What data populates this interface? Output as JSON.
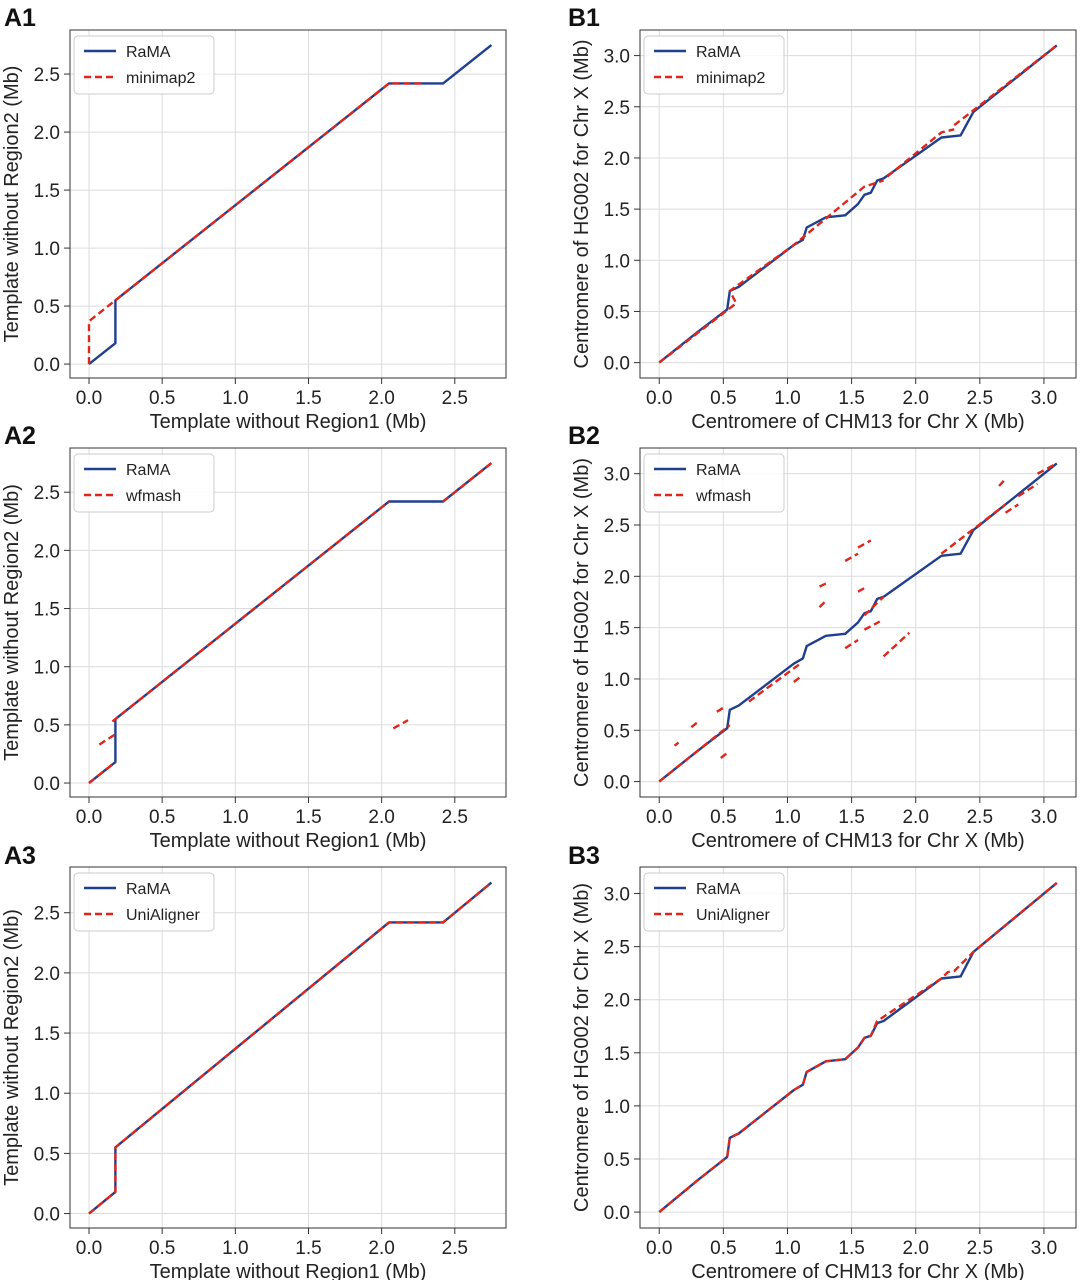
{
  "colors": {
    "rama": "#1f3f8f",
    "other": "#e0261b",
    "grid": "#dcdcdc",
    "axes": "#333333"
  },
  "panels": [
    {
      "letter": "A1",
      "xlabel": "Template without Region1 (Mb)",
      "ylabel": "Template without Region2 (Mb)",
      "legend": [
        "RaMA",
        "minimap2"
      ]
    },
    {
      "letter": "B1",
      "xlabel": "Centromere of CHM13 for Chr X (Mb)",
      "ylabel": "Centromere of HG002 for Chr X (Mb)",
      "legend": [
        "RaMA",
        "minimap2"
      ]
    },
    {
      "letter": "A2",
      "xlabel": "Template without Region1 (Mb)",
      "ylabel": "Template without Region2 (Mb)",
      "legend": [
        "RaMA",
        "wfmash"
      ]
    },
    {
      "letter": "B2",
      "xlabel": "Centromere of CHM13 for Chr X (Mb)",
      "ylabel": "Centromere of HG002 for Chr X (Mb)",
      "legend": [
        "RaMA",
        "wfmash"
      ]
    },
    {
      "letter": "A3",
      "xlabel": "Template without Region1 (Mb)",
      "ylabel": "Template without Region2 (Mb)",
      "legend": [
        "RaMA",
        "UniAligner"
      ]
    },
    {
      "letter": "B3",
      "xlabel": "Centromere of CHM13 for Chr X (Mb)",
      "ylabel": "Centromere of HG002 for Chr X (Mb)",
      "legend": [
        "RaMA",
        "UniAligner"
      ]
    }
  ],
  "chart_data": [
    {
      "type": "line",
      "panel": "A1",
      "xlabel": "Template without Region1 (Mb)",
      "ylabel": "Template without Region2 (Mb)",
      "xlim": [
        -0.13,
        2.85
      ],
      "ylim": [
        -0.12,
        2.88
      ],
      "grid": true,
      "legend_position": "top-left",
      "xticks": [
        "0.0",
        "0.5",
        "1.0",
        "1.5",
        "2.0",
        "2.5"
      ],
      "yticks": [
        "0.0",
        "0.5",
        "1.0",
        "1.5",
        "2.0",
        "2.5"
      ],
      "series": [
        {
          "name": "RaMA",
          "style": "solid",
          "segments": [
            [
              [
                0,
                0
              ],
              [
                0.18,
                0.18
              ],
              [
                0.18,
                0.55
              ],
              [
                2.05,
                2.42
              ],
              [
                2.42,
                2.42
              ],
              [
                2.75,
                2.75
              ]
            ]
          ]
        },
        {
          "name": "minimap2",
          "style": "dashed",
          "segments": [
            [
              [
                0,
                0
              ],
              [
                0,
                0.37
              ],
              [
                0.18,
                0.55
              ],
              [
                2.05,
                2.42
              ],
              [
                2.3,
                2.42
              ]
            ]
          ]
        }
      ]
    },
    {
      "type": "line",
      "panel": "B1",
      "xlabel": "Centromere of CHM13 for Chr X (Mb)",
      "ylabel": "Centromere of HG002 for Chr X (Mb)",
      "xlim": [
        -0.15,
        3.25
      ],
      "ylim": [
        -0.15,
        3.25
      ],
      "grid": true,
      "legend_position": "top-left",
      "xticks": [
        "0.0",
        "0.5",
        "1.0",
        "1.5",
        "2.0",
        "2.5",
        "3.0"
      ],
      "yticks": [
        "0.0",
        "0.5",
        "1.0",
        "1.5",
        "2.0",
        "2.5",
        "3.0"
      ],
      "series": [
        {
          "name": "RaMA",
          "style": "solid",
          "segments": [
            [
              [
                0,
                0
              ],
              [
                0.3,
                0.3
              ],
              [
                0.53,
                0.52
              ],
              [
                0.55,
                0.7
              ],
              [
                0.62,
                0.74
              ],
              [
                1.05,
                1.15
              ],
              [
                1.12,
                1.2
              ],
              [
                1.15,
                1.32
              ],
              [
                1.3,
                1.42
              ],
              [
                1.45,
                1.44
              ],
              [
                1.55,
                1.55
              ],
              [
                1.6,
                1.64
              ],
              [
                1.65,
                1.66
              ],
              [
                1.7,
                1.78
              ],
              [
                1.75,
                1.8
              ],
              [
                2.2,
                2.2
              ],
              [
                2.35,
                2.22
              ],
              [
                2.45,
                2.45
              ],
              [
                3.1,
                3.1
              ]
            ]
          ]
        },
        {
          "name": "minimap2",
          "style": "dashed",
          "segments": [
            [
              [
                0,
                0
              ],
              [
                0.6,
                0.58
              ],
              [
                0.55,
                0.7
              ],
              [
                1.05,
                1.15
              ],
              [
                1.6,
                1.72
              ],
              [
                1.75,
                1.78
              ]
            ],
            [
              [
                1.78,
                1.82
              ],
              [
                2.2,
                2.25
              ],
              [
                2.3,
                2.28
              ]
            ],
            [
              [
                2.3,
                2.32
              ],
              [
                3.1,
                3.1
              ]
            ]
          ]
        }
      ]
    },
    {
      "type": "line",
      "panel": "A2",
      "xlabel": "Template without Region1 (Mb)",
      "ylabel": "Template without Region2 (Mb)",
      "xlim": [
        -0.13,
        2.85
      ],
      "ylim": [
        -0.12,
        2.88
      ],
      "grid": true,
      "legend_position": "top-left",
      "xticks": [
        "0.0",
        "0.5",
        "1.0",
        "1.5",
        "2.0",
        "2.5"
      ],
      "yticks": [
        "0.0",
        "0.5",
        "1.0",
        "1.5",
        "2.0",
        "2.5"
      ],
      "series": [
        {
          "name": "RaMA",
          "style": "solid",
          "segments": [
            [
              [
                0,
                0
              ],
              [
                0.18,
                0.18
              ],
              [
                0.18,
                0.55
              ],
              [
                2.05,
                2.42
              ],
              [
                2.42,
                2.42
              ],
              [
                2.75,
                2.75
              ]
            ]
          ]
        },
        {
          "name": "wfmash",
          "style": "dashed",
          "segments": [
            [
              [
                0,
                0
              ],
              [
                0.18,
                0.18
              ]
            ],
            [
              [
                0.07,
                0.33
              ],
              [
                0.18,
                0.42
              ]
            ],
            [
              [
                0.16,
                0.53
              ],
              [
                2.05,
                2.42
              ]
            ],
            [
              [
                2.42,
                2.42
              ],
              [
                2.75,
                2.75
              ]
            ],
            [
              [
                2.08,
                0.47
              ],
              [
                2.18,
                0.54
              ]
            ]
          ]
        }
      ]
    },
    {
      "type": "line",
      "panel": "B2",
      "xlabel": "Centromere of CHM13 for Chr X (Mb)",
      "ylabel": "Centromere of HG002 for Chr X (Mb)",
      "xlim": [
        -0.15,
        3.25
      ],
      "ylim": [
        -0.15,
        3.25
      ],
      "grid": true,
      "legend_position": "top-left",
      "xticks": [
        "0.0",
        "0.5",
        "1.0",
        "1.5",
        "2.0",
        "2.5",
        "3.0"
      ],
      "yticks": [
        "0.0",
        "0.5",
        "1.0",
        "1.5",
        "2.0",
        "2.5",
        "3.0"
      ],
      "series": [
        {
          "name": "RaMA",
          "style": "solid",
          "segments": [
            [
              [
                0,
                0
              ],
              [
                0.3,
                0.3
              ],
              [
                0.53,
                0.52
              ],
              [
                0.55,
                0.7
              ],
              [
                0.62,
                0.74
              ],
              [
                1.05,
                1.15
              ],
              [
                1.12,
                1.2
              ],
              [
                1.15,
                1.32
              ],
              [
                1.3,
                1.42
              ],
              [
                1.45,
                1.44
              ],
              [
                1.55,
                1.55
              ],
              [
                1.6,
                1.64
              ],
              [
                1.65,
                1.66
              ],
              [
                1.7,
                1.78
              ],
              [
                1.75,
                1.8
              ],
              [
                2.2,
                2.2
              ],
              [
                2.35,
                2.22
              ],
              [
                2.45,
                2.45
              ],
              [
                3.1,
                3.1
              ]
            ]
          ]
        },
        {
          "name": "wfmash",
          "style": "dashed",
          "segments": [
            [
              [
                0,
                0
              ],
              [
                0.55,
                0.55
              ]
            ],
            [
              [
                0.12,
                0.35
              ],
              [
                0.15,
                0.38
              ]
            ],
            [
              [
                0.25,
                0.53
              ],
              [
                0.3,
                0.58
              ]
            ],
            [
              [
                0.45,
                0.68
              ],
              [
                0.5,
                0.72
              ]
            ],
            [
              [
                0.48,
                0.23
              ],
              [
                0.53,
                0.28
              ]
            ],
            [
              [
                0.7,
                0.78
              ],
              [
                1.1,
                1.15
              ]
            ],
            [
              [
                1.05,
                0.97
              ],
              [
                1.1,
                1.02
              ]
            ],
            [
              [
                1.25,
                1.9
              ],
              [
                1.3,
                1.93
              ]
            ],
            [
              [
                1.25,
                1.7
              ],
              [
                1.3,
                1.76
              ]
            ],
            [
              [
                1.45,
                2.15
              ],
              [
                1.55,
                2.22
              ]
            ],
            [
              [
                1.55,
                2.28
              ],
              [
                1.65,
                2.35
              ]
            ],
            [
              [
                1.55,
                1.85
              ],
              [
                1.62,
                1.9
              ]
            ],
            [
              [
                1.45,
                1.3
              ],
              [
                1.55,
                1.38
              ]
            ],
            [
              [
                1.6,
                1.48
              ],
              [
                1.72,
                1.56
              ]
            ],
            [
              [
                1.75,
                1.22
              ],
              [
                1.95,
                1.45
              ]
            ],
            [
              [
                1.6,
                1.62
              ],
              [
                1.75,
                1.8
              ]
            ],
            [
              [
                2.2,
                2.22
              ],
              [
                2.7,
                2.7
              ]
            ],
            [
              [
                2.65,
                2.88
              ],
              [
                2.7,
                2.95
              ]
            ],
            [
              [
                2.7,
                2.62
              ],
              [
                2.8,
                2.7
              ]
            ],
            [
              [
                2.8,
                2.78
              ],
              [
                2.95,
                2.9
              ]
            ],
            [
              [
                2.95,
                3.0
              ],
              [
                3.1,
                3.1
              ]
            ]
          ]
        }
      ]
    },
    {
      "type": "line",
      "panel": "A3",
      "xlabel": "Template without Region1 (Mb)",
      "ylabel": "Template without Region2 (Mb)",
      "xlim": [
        -0.13,
        2.85
      ],
      "ylim": [
        -0.12,
        2.88
      ],
      "grid": true,
      "legend_position": "top-left",
      "xticks": [
        "0.0",
        "0.5",
        "1.0",
        "1.5",
        "2.0",
        "2.5"
      ],
      "yticks": [
        "0.0",
        "0.5",
        "1.0",
        "1.5",
        "2.0",
        "2.5"
      ],
      "series": [
        {
          "name": "RaMA",
          "style": "solid",
          "segments": [
            [
              [
                0,
                0
              ],
              [
                0.18,
                0.18
              ],
              [
                0.18,
                0.55
              ],
              [
                2.05,
                2.42
              ],
              [
                2.42,
                2.42
              ],
              [
                2.75,
                2.75
              ]
            ]
          ]
        },
        {
          "name": "UniAligner",
          "style": "dashed",
          "segments": [
            [
              [
                0,
                0
              ],
              [
                0.18,
                0.18
              ],
              [
                0.18,
                0.55
              ],
              [
                2.05,
                2.42
              ],
              [
                2.42,
                2.42
              ],
              [
                2.75,
                2.75
              ]
            ]
          ]
        }
      ]
    },
    {
      "type": "line",
      "panel": "B3",
      "xlabel": "Centromere of CHM13 for Chr X (Mb)",
      "ylabel": "Centromere of HG002 for Chr X (Mb)",
      "xlim": [
        -0.15,
        3.25
      ],
      "ylim": [
        -0.15,
        3.25
      ],
      "grid": true,
      "legend_position": "top-left",
      "xticks": [
        "0.0",
        "0.5",
        "1.0",
        "1.5",
        "2.0",
        "2.5",
        "3.0"
      ],
      "yticks": [
        "0.0",
        "0.5",
        "1.0",
        "1.5",
        "2.0",
        "2.5",
        "3.0"
      ],
      "series": [
        {
          "name": "RaMA",
          "style": "solid",
          "segments": [
            [
              [
                0,
                0
              ],
              [
                0.3,
                0.3
              ],
              [
                0.53,
                0.52
              ],
              [
                0.55,
                0.7
              ],
              [
                0.62,
                0.74
              ],
              [
                1.05,
                1.15
              ],
              [
                1.12,
                1.2
              ],
              [
                1.15,
                1.32
              ],
              [
                1.3,
                1.42
              ],
              [
                1.45,
                1.44
              ],
              [
                1.55,
                1.55
              ],
              [
                1.6,
                1.64
              ],
              [
                1.65,
                1.66
              ],
              [
                1.7,
                1.78
              ],
              [
                1.75,
                1.8
              ],
              [
                2.2,
                2.2
              ],
              [
                2.35,
                2.22
              ],
              [
                2.45,
                2.45
              ],
              [
                3.1,
                3.1
              ]
            ]
          ]
        },
        {
          "name": "UniAligner",
          "style": "dashed",
          "segments": [
            [
              [
                0,
                0
              ],
              [
                0.3,
                0.3
              ],
              [
                0.53,
                0.52
              ],
              [
                0.55,
                0.7
              ],
              [
                0.62,
                0.74
              ],
              [
                1.05,
                1.15
              ],
              [
                1.12,
                1.2
              ],
              [
                1.15,
                1.32
              ],
              [
                1.3,
                1.42
              ],
              [
                1.45,
                1.44
              ],
              [
                1.55,
                1.55
              ],
              [
                1.6,
                1.64
              ],
              [
                1.65,
                1.66
              ],
              [
                1.7,
                1.8
              ],
              [
                2.2,
                2.2
              ],
              [
                2.25,
                2.26
              ],
              [
                2.3,
                2.27
              ],
              [
                2.45,
                2.45
              ],
              [
                3.1,
                3.1
              ]
            ]
          ]
        }
      ]
    }
  ]
}
